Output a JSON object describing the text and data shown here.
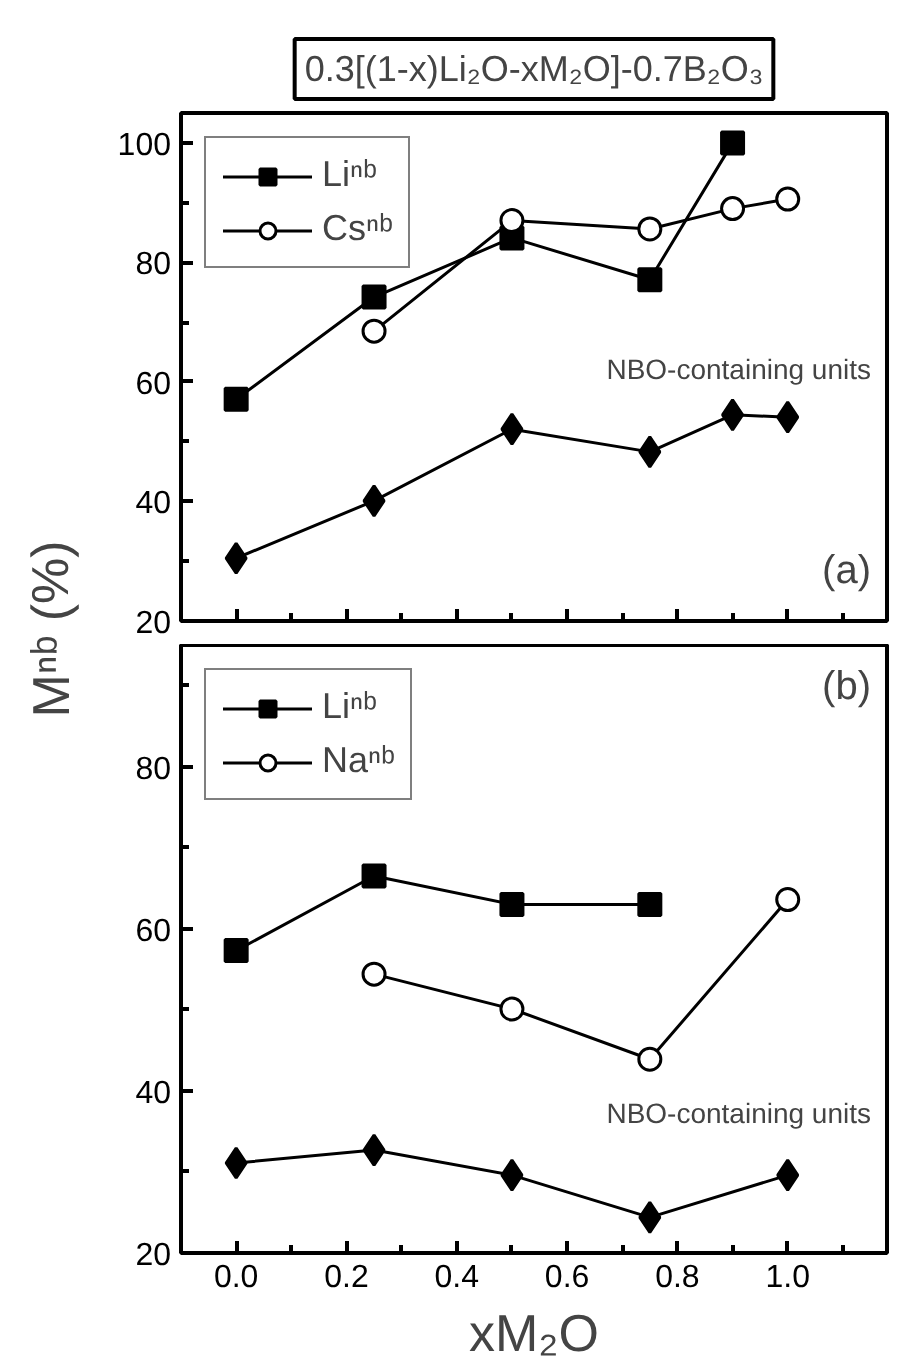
{
  "chart_data": [
    {
      "type": "line",
      "title": "0.3[(1-x)Li₂O-xM₂O]-0.7B₂O₃",
      "ylabel": "Mⁿᵇ (%)",
      "xlim": [
        -0.1,
        1.18
      ],
      "xticks": [
        0,
        0.2,
        0.4,
        0.6,
        0.8,
        1.0
      ],
      "ylim": [
        20,
        105
      ],
      "yticks": [
        20,
        40,
        60,
        80,
        100
      ],
      "tick_labels": "y",
      "grid": false,
      "legend": "top left",
      "line_style": "solid",
      "annotations": [
        "NBO-containing units",
        "(a)"
      ],
      "series": [
        {
          "name": "Liⁿᵇ",
          "color": "#000000",
          "marker": "square",
          "x": [
            0,
            0.25,
            0.5,
            0.75,
            0.9
          ],
          "values": [
            57.1,
            74.2,
            84.1,
            77.1,
            100
          ]
        },
        {
          "name": "Csⁿᵇ",
          "color": "#000000",
          "marker": "circle",
          "x": [
            0.25,
            0.5,
            0.75,
            0.9,
            1.0
          ],
          "values": [
            68.5,
            87,
            85.6,
            89,
            90.6
          ]
        },
        {
          "color": "#000000",
          "marker": "diamond",
          "x": [
            0,
            0.25,
            0.5,
            0.75,
            0.9,
            1.0
          ],
          "values": [
            30.5,
            40.1,
            52.1,
            48.3,
            54.5,
            54.1
          ]
        }
      ]
    },
    {
      "type": "line",
      "xlabel": "xM₂O",
      "xlim": [
        -0.1,
        1.18
      ],
      "xticks": [
        {
          "value": 0,
          "label": "0.0"
        },
        0.2,
        0.4,
        0.6,
        0.8,
        {
          "value": 1.0,
          "label": "1.0"
        }
      ],
      "ylim": [
        20,
        95
      ],
      "yticks": [
        20,
        40,
        60,
        80
      ],
      "grid": false,
      "legend": "top left",
      "line_style": "solid",
      "annotations": [
        "NBO-containing units",
        "(b)"
      ],
      "series": [
        {
          "name": "Liⁿᵇ",
          "color": "#000000",
          "marker": "square",
          "x": [
            0,
            0.25,
            0.5,
            0.75
          ],
          "values": [
            57.3,
            66.5,
            63,
            63
          ]
        },
        {
          "name": "Naⁿᵇ",
          "color": "#000000",
          "marker": "circle",
          "x": [
            0.25,
            0.5,
            0.75,
            1.0
          ],
          "values": [
            54.4,
            50.1,
            43.9,
            63.6
          ]
        },
        {
          "color": "#000000",
          "marker": "diamond",
          "x": [
            0,
            0.25,
            0.5,
            0.75,
            1.0
          ],
          "values": [
            31.1,
            32.7,
            29.6,
            24.4,
            29.6
          ]
        }
      ]
    }
  ]
}
